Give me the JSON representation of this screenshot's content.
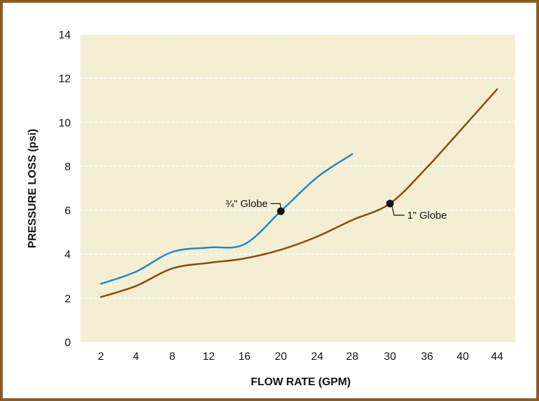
{
  "chart_data": {
    "type": "line",
    "xlabel": "FLOW RATE (GPM)",
    "ylabel": "PRESSURE LOSS (psi)",
    "x_tick_labels": [
      "2",
      "4",
      "8",
      "12",
      "16",
      "20",
      "24",
      "28",
      "30",
      "36",
      "40",
      "44"
    ],
    "y_ticks": [
      0,
      2,
      4,
      6,
      8,
      10,
      12,
      14
    ],
    "ylim": [
      0,
      14
    ],
    "grid": "horizontal dashed",
    "series": [
      {
        "name": "¾\" Globe",
        "color": "#1f86c8",
        "x_index": [
          0,
          1,
          2,
          3,
          4,
          5,
          6,
          7
        ],
        "values": [
          2.65,
          3.2,
          4.1,
          4.3,
          4.45,
          5.95,
          7.5,
          8.55
        ],
        "marker": {
          "x_index": 5,
          "value": 5.95
        }
      },
      {
        "name": "1\" Globe",
        "color": "#8b4513",
        "x_index": [
          0,
          1,
          2,
          3,
          4,
          5,
          6,
          7,
          8,
          9,
          10,
          11
        ],
        "values": [
          2.05,
          2.55,
          3.35,
          3.6,
          3.8,
          4.2,
          4.8,
          5.55,
          6.3,
          7.95,
          9.75,
          11.5
        ],
        "marker": {
          "x_index": 8,
          "value": 6.3
        }
      }
    ],
    "colors": {
      "plot_bg": "#f4efd2",
      "frame": "#8a5a24"
    }
  }
}
